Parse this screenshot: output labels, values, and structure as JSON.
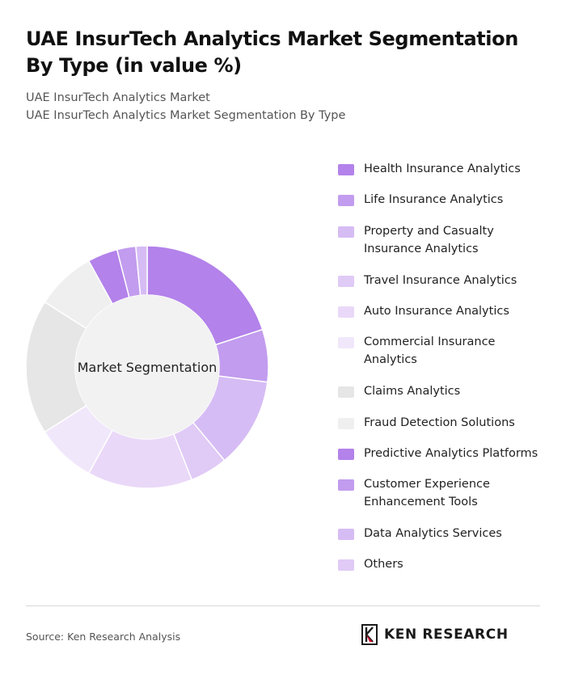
{
  "page": {
    "title": "UAE InsurTech Analytics Market Segmentation By Type (in value %)",
    "subtitle_1": "UAE InsurTech Analytics Market",
    "subtitle_2": "UAE InsurTech Analytics Market Segmentation By Type",
    "source": "Source: Ken Research Analysis",
    "brand": "KEN RESEARCH"
  },
  "chart_data": {
    "type": "pie",
    "center_label": "Market Segmentation",
    "legend_position": "right",
    "categories": [
      "Health Insurance Analytics",
      "Life Insurance Analytics",
      "Property and Casualty Insurance Analytics",
      "Travel Insurance Analytics",
      "Auto Insurance Analytics",
      "Commercial Insurance Analytics",
      "Claims Analytics",
      "Fraud Detection Solutions",
      "Predictive Analytics Platforms",
      "Customer Experience Enhancement Tools",
      "Data Analytics Services",
      "Others"
    ],
    "values": [
      20,
      7,
      12,
      5,
      14,
      8,
      18,
      8,
      4,
      2.5,
      1.5,
      0
    ],
    "colors": [
      "#b382ea",
      "#c29cee",
      "#d6bcf4",
      "#e0caf6",
      "#ead8f8",
      "#f1e7fb",
      "#e6e6e6",
      "#efefef",
      "#b382ea",
      "#c29cee",
      "#d6bcf4",
      "#e0caf6"
    ]
  }
}
